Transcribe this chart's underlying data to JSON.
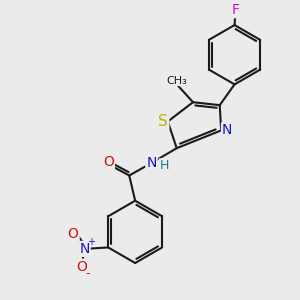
{
  "bg_color": "#ebebeb",
  "bond_color": "#1a1a1a",
  "bond_width": 1.5,
  "atom_colors": {
    "C": "#1a1a1a",
    "N": "#1414cc",
    "O": "#cc1414",
    "S": "#b8b800",
    "F": "#cc14cc",
    "H": "#148080"
  },
  "font_size": 9,
  "fig_size": [
    3.0,
    3.0
  ],
  "dpi": 100
}
